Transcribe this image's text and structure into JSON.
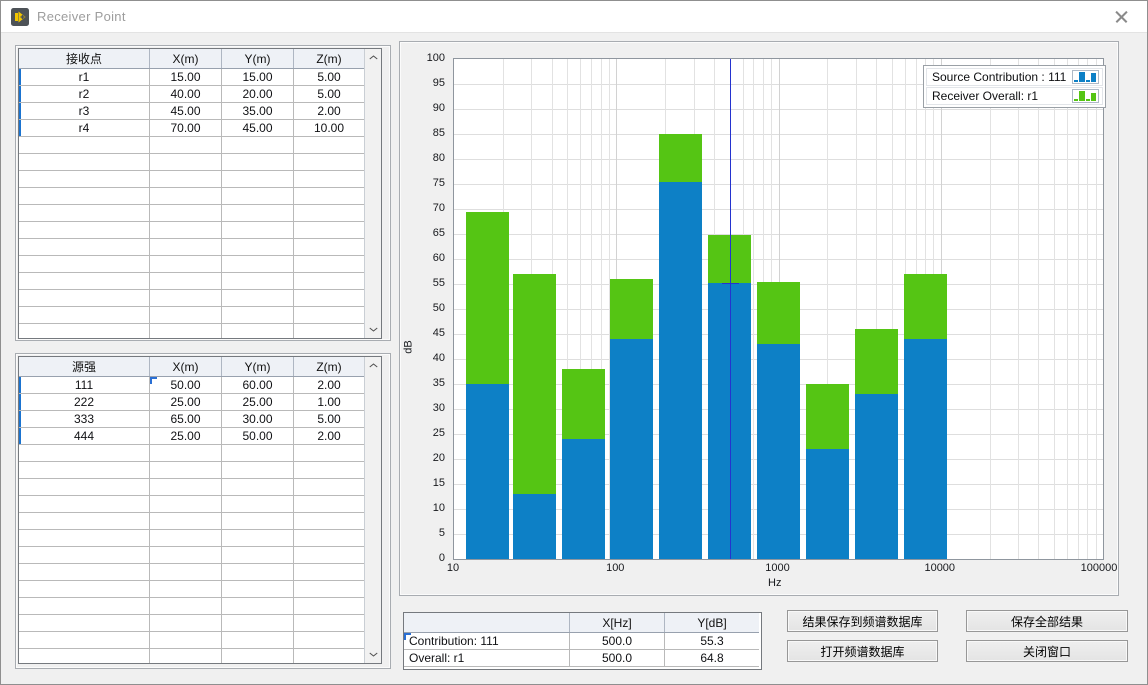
{
  "window": {
    "title": "Receiver Point"
  },
  "receiver_table": {
    "headers": [
      "接收点",
      "X(m)",
      "Y(m)",
      "Z(m)"
    ],
    "rows": [
      [
        "r1",
        "15.00",
        "15.00",
        "5.00"
      ],
      [
        "r2",
        "40.00",
        "20.00",
        "5.00"
      ],
      [
        "r3",
        "45.00",
        "35.00",
        "2.00"
      ],
      [
        "r4",
        "70.00",
        "45.00",
        "10.00"
      ]
    ]
  },
  "source_table": {
    "headers": [
      "源强",
      "X(m)",
      "Y(m)",
      "Z(m)"
    ],
    "rows": [
      [
        "111",
        "50.00",
        "60.00",
        "2.00"
      ],
      [
        "222",
        "25.00",
        "25.00",
        "1.00"
      ],
      [
        "333",
        "65.00",
        "30.00",
        "5.00"
      ],
      [
        "444",
        "25.00",
        "50.00",
        "2.00"
      ]
    ]
  },
  "cursor_readout": {
    "headers": [
      "",
      "X[Hz]",
      "Y[dB]"
    ],
    "rows": [
      [
        "Contribution: 111",
        "500.0",
        "55.3"
      ],
      [
        "Overall: r1",
        "500.0",
        "64.8"
      ]
    ]
  },
  "buttons": {
    "save_to_db": "结果保存到频谱数据库",
    "save_all": "保存全部结果",
    "open_db": "打开频谱数据库",
    "close_window": "关闭窗口"
  },
  "chart_data": {
    "type": "bar",
    "x_scale": "log",
    "xlim": [
      10,
      100000
    ],
    "ylim": [
      0,
      100
    ],
    "y_tick_step": 5,
    "x_ticks": [
      10,
      100,
      1000,
      10000,
      100000
    ],
    "xlabel": "Hz",
    "ylabel": "dB",
    "grid": true,
    "legend_position": "top-right",
    "frequencies_hz": [
      16,
      31.5,
      63,
      125,
      250,
      500,
      1000,
      2000,
      4000,
      8000
    ],
    "series": [
      {
        "name": "Source Contribution : 111",
        "color": "#0d80c6",
        "values": [
          35,
          13,
          24,
          44,
          75.5,
          55.3,
          43,
          22,
          33,
          44
        ],
        "layer": "front"
      },
      {
        "name": "Receiver Overall: r1",
        "color": "#55c514",
        "values": [
          69.5,
          57,
          38,
          56,
          85,
          64.8,
          55.5,
          35,
          46,
          57
        ],
        "layer": "back"
      }
    ],
    "cursor": {
      "x_hz": 500,
      "y_db": 55.3,
      "color": "#2433cf"
    }
  }
}
